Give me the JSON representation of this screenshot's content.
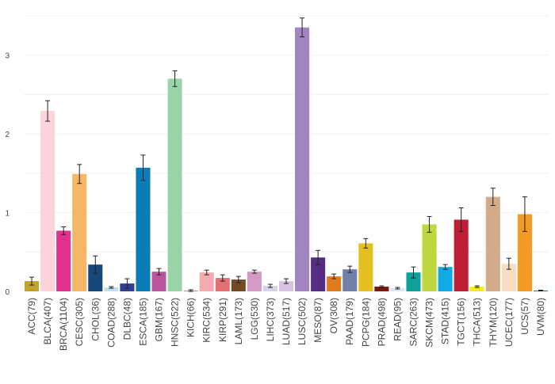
{
  "chart_data": {
    "type": "bar",
    "title": "",
    "xlabel": "",
    "ylabel": "",
    "ylim": [
      0,
      3.5
    ],
    "y_ticks": [
      0,
      1,
      2,
      3
    ],
    "grid": true,
    "legend": "none",
    "error_bars": true,
    "categories": [
      "ACC(79)",
      "BLCA(407)",
      "BRCA(1104)",
      "CESC(305)",
      "CHOL(36)",
      "COAD(288)",
      "DLBC(48)",
      "ESCA(185)",
      "GBM(167)",
      "HNSC(522)",
      "KICH(66)",
      "KIRC(534)",
      "KIRP(291)",
      "LAML(173)",
      "LGG(530)",
      "LIHC(373)",
      "LUAD(517)",
      "LUSC(502)",
      "MESO(87)",
      "OV(308)",
      "PAAD(179)",
      "PCPG(184)",
      "PRAD(498)",
      "READ(95)",
      "SARC(263)",
      "SKCM(473)",
      "STAD(415)",
      "TGCT(156)",
      "THCA(513)",
      "THYM(120)",
      "UCEC(177)",
      "UCS(57)",
      "UVM(80)"
    ],
    "values": [
      0.13,
      2.29,
      0.77,
      1.49,
      0.34,
      0.05,
      0.1,
      1.57,
      0.25,
      2.7,
      0.01,
      0.24,
      0.17,
      0.15,
      0.25,
      0.07,
      0.13,
      3.35,
      0.43,
      0.19,
      0.28,
      0.61,
      0.06,
      0.04,
      0.24,
      0.85,
      0.31,
      0.91,
      0.06,
      1.2,
      0.35,
      0.98,
      0.01
    ],
    "errors": [
      0.05,
      0.13,
      0.05,
      0.12,
      0.11,
      0.01,
      0.06,
      0.16,
      0.04,
      0.1,
      0.01,
      0.03,
      0.04,
      0.04,
      0.02,
      0.02,
      0.03,
      0.12,
      0.09,
      0.03,
      0.04,
      0.06,
      0.01,
      0.01,
      0.07,
      0.1,
      0.03,
      0.15,
      0.01,
      0.11,
      0.07,
      0.22,
      0.005
    ],
    "colors": [
      "#c2a42b",
      "#fbd3db",
      "#e2328b",
      "#f5b766",
      "#14497a",
      "#bfe0f0",
      "#303f94",
      "#0a7cb6",
      "#b9569f",
      "#9bd4a9",
      "#e5808a",
      "#f2abaf",
      "#e46f74",
      "#744a25",
      "#d49ac6",
      "#d8d3e8",
      "#d7c4e0",
      "#a185c1",
      "#572d83",
      "#df7c1e",
      "#7180a8",
      "#e3c020",
      "#7b1713",
      "#dbe8ef",
      "#12a19a",
      "#bfd63f",
      "#11a9e6",
      "#bf1f34",
      "#f9e826",
      "#d2ab8b",
      "#f7dec0",
      "#f59a22",
      "#108a64"
    ]
  }
}
